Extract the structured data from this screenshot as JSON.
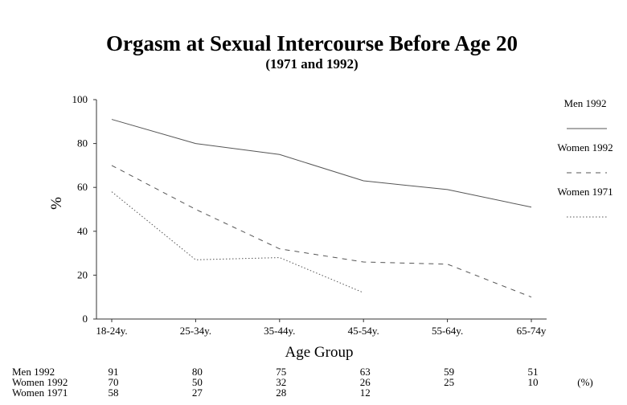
{
  "chart_data": {
    "type": "line",
    "title": "Orgasm at Sexual Intercourse Before Age 20",
    "subtitle": "(1971 and 1992)",
    "xlabel": "Age Group",
    "ylabel": "%",
    "ylim": [
      0,
      100
    ],
    "yticks": [
      0,
      20,
      40,
      60,
      80,
      100
    ],
    "grid": false,
    "legend_position": "right",
    "categories": [
      "18-24y.",
      "25-34y.",
      "35-44y.",
      "45-54y.",
      "55-64y.",
      "65-74y"
    ],
    "series": [
      {
        "name": "Men 1992",
        "style": "solid",
        "color": "#555555",
        "values": [
          91,
          80,
          75,
          63,
          59,
          51
        ]
      },
      {
        "name": "Women 1992",
        "style": "dashed",
        "color": "#555555",
        "values": [
          70,
          50,
          32,
          26,
          25,
          10
        ]
      },
      {
        "name": "Women 1971",
        "style": "dotted",
        "color": "#555555",
        "values": [
          58,
          27,
          28,
          12,
          null,
          null
        ]
      }
    ],
    "table": {
      "unit_label": "(%)",
      "rows": [
        {
          "label": "Men 1992",
          "cells": [
            "91",
            "80",
            "75",
            "63",
            "59",
            "51"
          ]
        },
        {
          "label": "Women 1992",
          "cells": [
            "70",
            "50",
            "32",
            "26",
            "25",
            "10"
          ]
        },
        {
          "label": "Women 1971",
          "cells": [
            "58",
            "27",
            "28",
            "12",
            "",
            ""
          ]
        }
      ]
    }
  }
}
